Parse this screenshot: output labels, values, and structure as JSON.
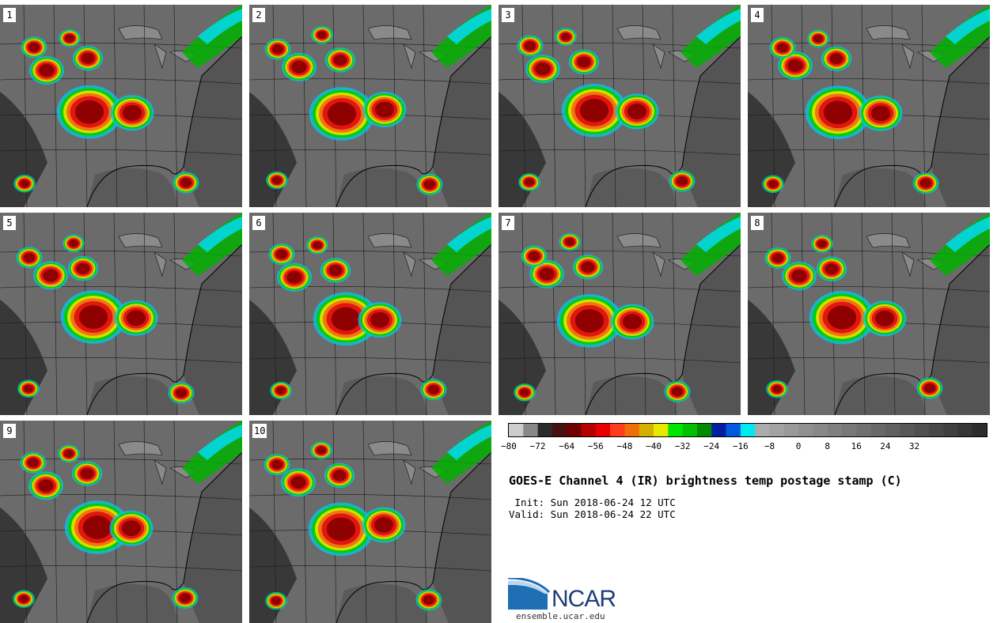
{
  "colors": {
    "accent": "#1f3d7a",
    "ocean": "#3c3c3c",
    "land": "#6b6b6b"
  },
  "panels": [
    {
      "label": "1"
    },
    {
      "label": "2"
    },
    {
      "label": "3"
    },
    {
      "label": "4"
    },
    {
      "label": "5"
    },
    {
      "label": "6"
    },
    {
      "label": "7"
    },
    {
      "label": "8"
    },
    {
      "label": "9"
    },
    {
      "label": "10"
    }
  ],
  "colorbar": {
    "ticks": [
      "−80",
      "−72",
      "−64",
      "−56",
      "−48",
      "−40",
      "−32",
      "−24",
      "−16",
      "−8",
      "0",
      "8",
      "16",
      "24",
      "32"
    ],
    "colors": [
      "#cccccc",
      "#888888",
      "#2a2a2a",
      "#4a1010",
      "#6e0000",
      "#b50000",
      "#e80000",
      "#ff3c1e",
      "#f06e0a",
      "#d4b000",
      "#e9e900",
      "#00e400",
      "#00c000",
      "#008a00",
      "#001fa0",
      "#005ae0",
      "#00e8f0",
      "#ababab",
      "#a2a2a2",
      "#999999",
      "#909090",
      "#888888",
      "#808080",
      "#787878",
      "#707070",
      "#686868",
      "#606060",
      "#585858",
      "#505050",
      "#484848",
      "#3f3f3f",
      "#363636",
      "#2c2c2c"
    ]
  },
  "title": "GOES-E Channel 4 (IR) brightness temp postage stamp (C)",
  "init_line": " Init: Sun 2018-06-24 12 UTC",
  "valid_line": "Valid: Sun 2018-06-24 22 UTC",
  "logo": {
    "text": "NCAR",
    "url": "ensemble.ucar.edu"
  }
}
